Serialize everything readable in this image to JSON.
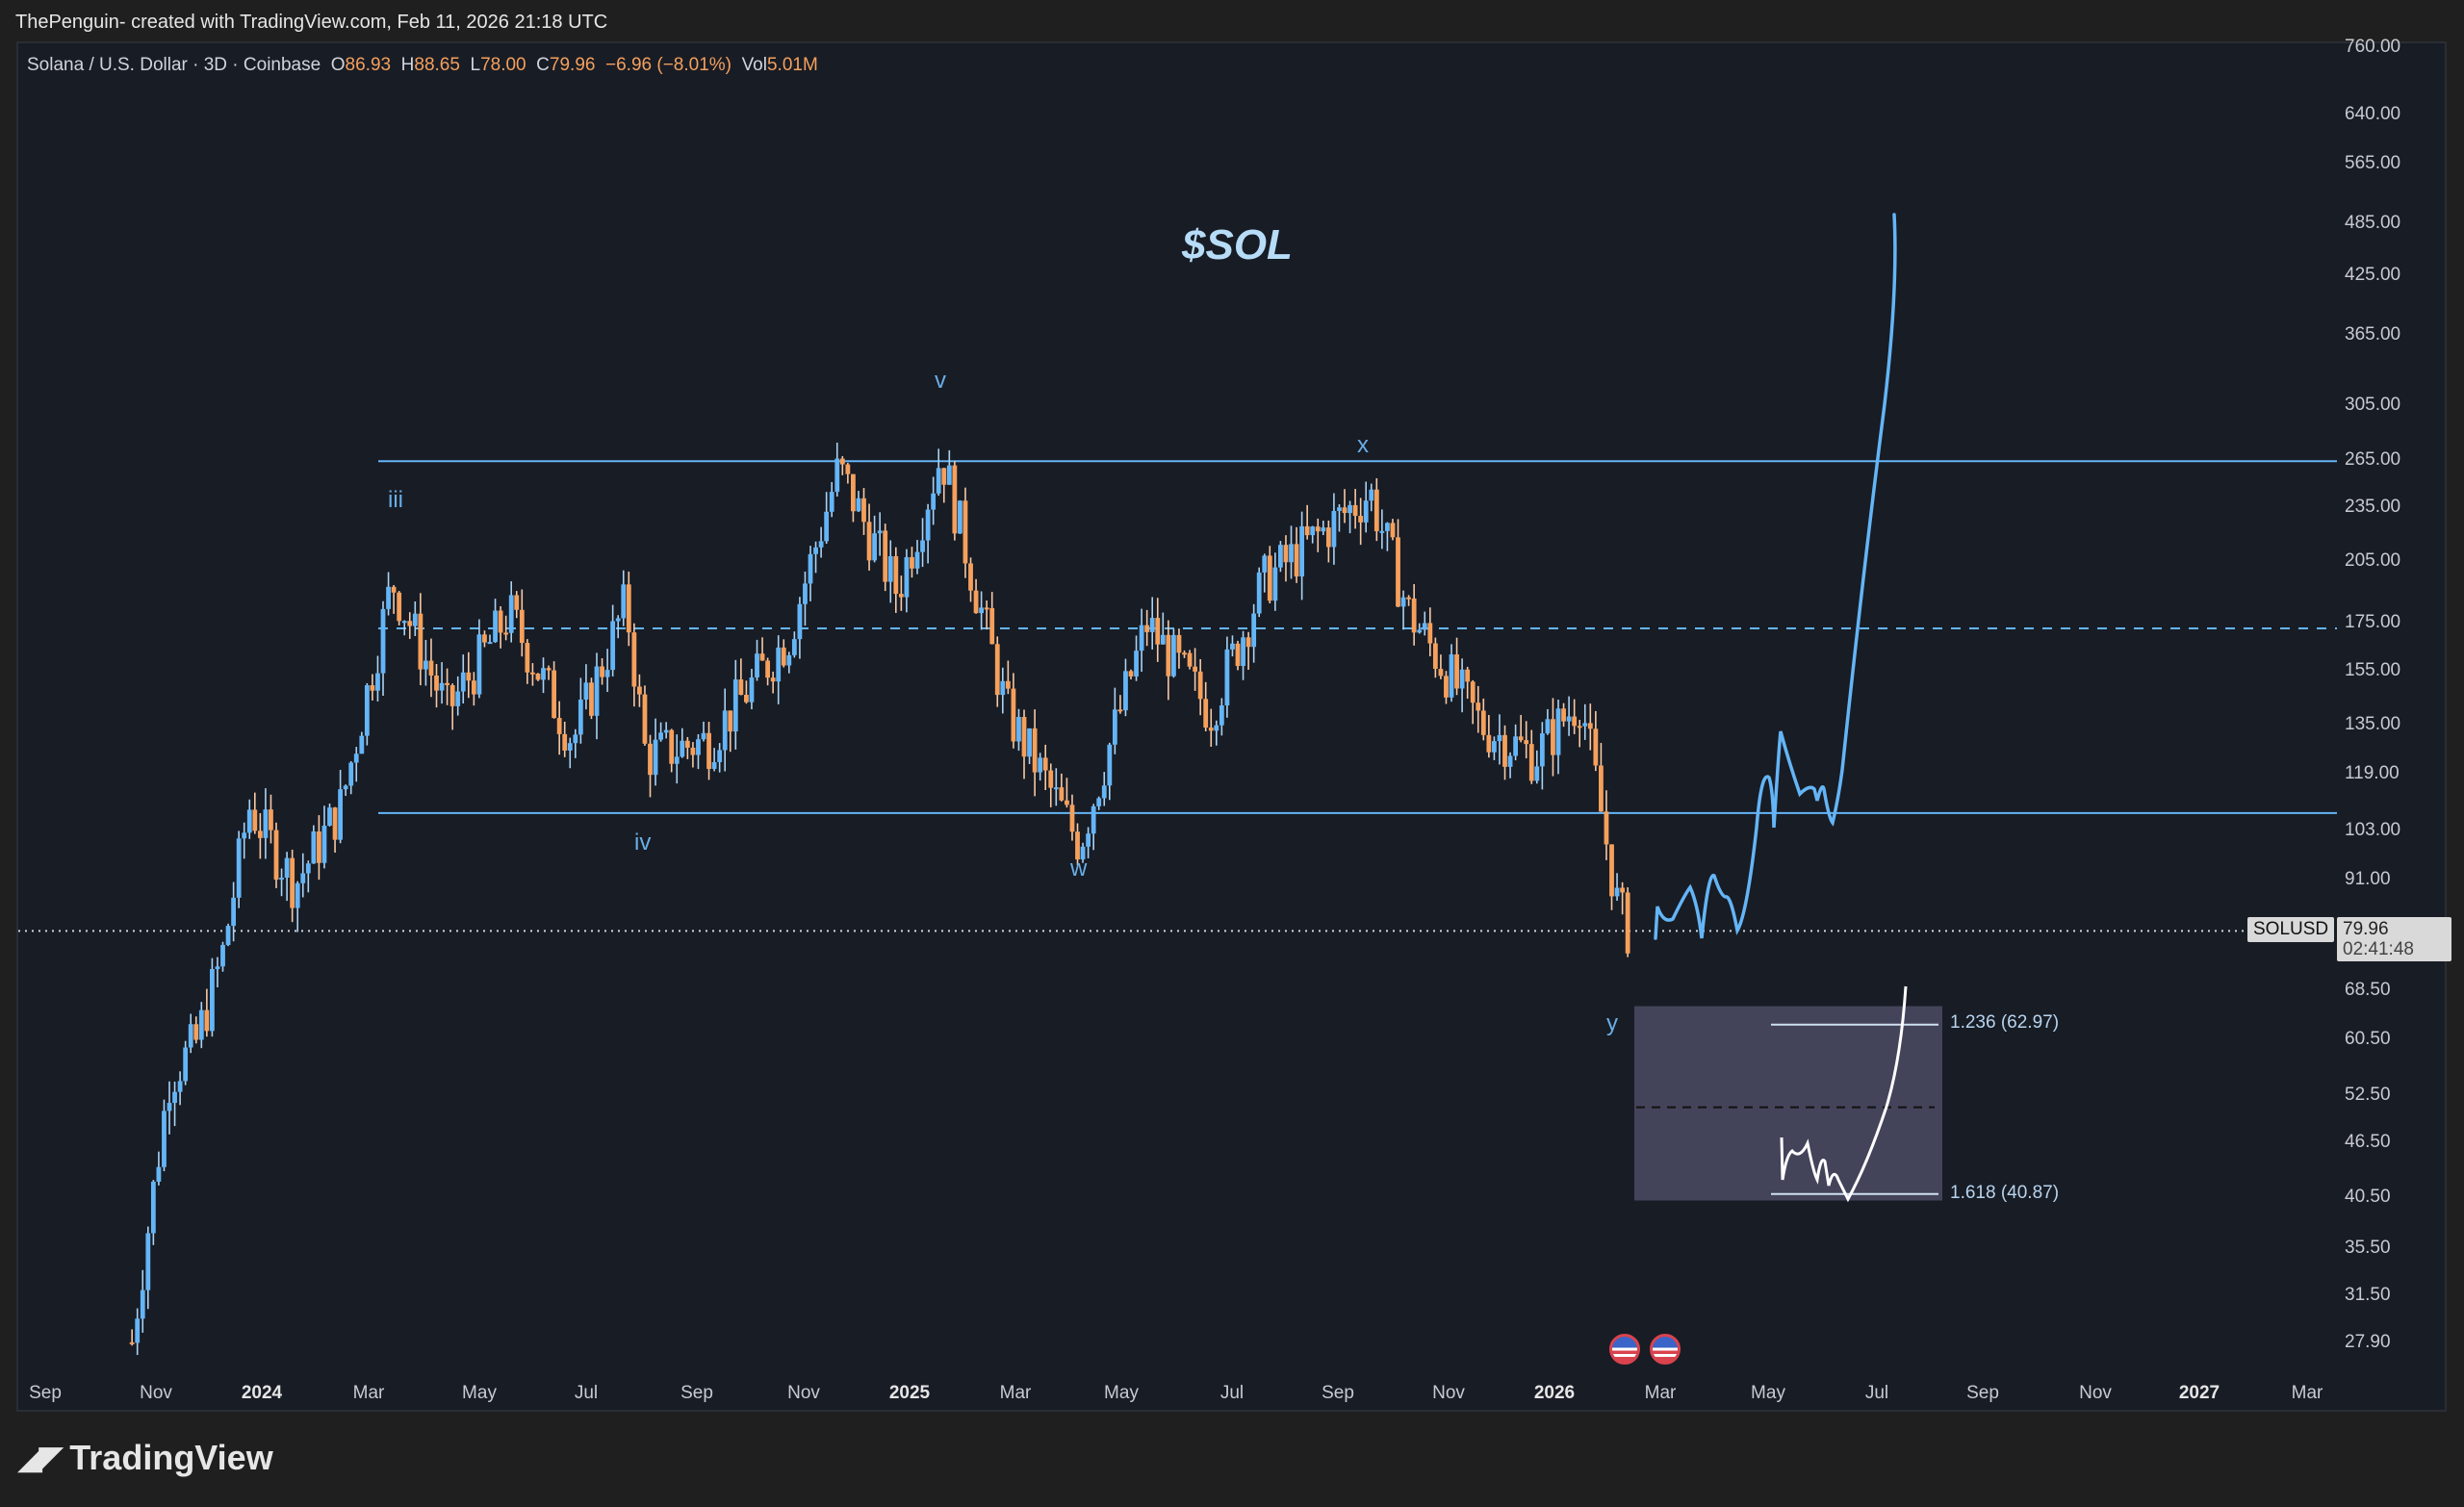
{
  "header": {
    "credit": "ThePenguin- created with TradingView.com, Feb 11, 2026 21:18 UTC"
  },
  "legend": {
    "symbol": "Solana / U.S. Dollar · 3D · Coinbase",
    "open_label": "O",
    "open": "86.93",
    "high_label": "H",
    "high": "88.65",
    "low_label": "L",
    "low": "78.00",
    "close_label": "C",
    "close": "79.96",
    "change": "−6.96 (−8.01%)",
    "vol_label": "Vol",
    "vol": "5.01M"
  },
  "annotations": {
    "title": "$SOL",
    "waves": [
      "iii",
      "iv",
      "v",
      "w",
      "x",
      "y"
    ],
    "fib_1236": "1.236 (62.97)",
    "fib_1618": "1.618 (40.87)"
  },
  "price_badge": {
    "symbol": "SOLUSD",
    "price": "79.96",
    "countdown": "02:41:48"
  },
  "y_axis": [
    "760.00",
    "640.00",
    "565.00",
    "485.00",
    "425.00",
    "365.00",
    "305.00",
    "265.00",
    "235.00",
    "205.00",
    "175.00",
    "155.00",
    "135.00",
    "119.00",
    "103.00",
    "91.00",
    "68.50",
    "60.50",
    "52.50",
    "46.50",
    "40.50",
    "35.50",
    "31.50",
    "27.90"
  ],
  "x_axis": [
    {
      "label": "Sep",
      "bold": false
    },
    {
      "label": "Nov",
      "bold": false
    },
    {
      "label": "2024",
      "bold": true
    },
    {
      "label": "Mar",
      "bold": false
    },
    {
      "label": "May",
      "bold": false
    },
    {
      "label": "Jul",
      "bold": false
    },
    {
      "label": "Sep",
      "bold": false
    },
    {
      "label": "Nov",
      "bold": false
    },
    {
      "label": "2025",
      "bold": true
    },
    {
      "label": "Mar",
      "bold": false
    },
    {
      "label": "May",
      "bold": false
    },
    {
      "label": "Jul",
      "bold": false
    },
    {
      "label": "Sep",
      "bold": false
    },
    {
      "label": "Nov",
      "bold": false
    },
    {
      "label": "2026",
      "bold": true
    },
    {
      "label": "Mar",
      "bold": false
    },
    {
      "label": "May",
      "bold": false
    },
    {
      "label": "Jul",
      "bold": false
    },
    {
      "label": "Sep",
      "bold": false
    },
    {
      "label": "Nov",
      "bold": false
    },
    {
      "label": "2027",
      "bold": true
    },
    {
      "label": "Mar",
      "bold": false
    }
  ],
  "footer": {
    "brand": "TradingView"
  },
  "colors": {
    "up": "#64b5f6",
    "down": "#f5a05c",
    "line": "#64b5f6",
    "background": "#181c25"
  },
  "chart_data": {
    "type": "candlestick",
    "title": "$SOL",
    "subtitle": "Solana / U.S. Dollar · 3D · Coinbase",
    "scale": "log",
    "ylim": [
      27.9,
      760
    ],
    "x_range": [
      "2023-09",
      "2027-03"
    ],
    "last": {
      "open": 86.93,
      "high": 88.65,
      "low": 78.0,
      "close": 79.96,
      "change": -6.96,
      "change_pct": -8.01,
      "volume": "5.01M"
    },
    "approx_closes": [
      {
        "date": "2023-10-20",
        "close": 28
      },
      {
        "date": "2023-11-10",
        "close": 55
      },
      {
        "date": "2023-11-25",
        "close": 60
      },
      {
        "date": "2023-12-10",
        "close": 75
      },
      {
        "date": "2023-12-25",
        "close": 110
      },
      {
        "date": "2024-01-20",
        "close": 90
      },
      {
        "date": "2024-02-15",
        "close": 110
      },
      {
        "date": "2024-03-15",
        "close": 195
      },
      {
        "date": "2024-04-15",
        "close": 140
      },
      {
        "date": "2024-05-20",
        "close": 180
      },
      {
        "date": "2024-06-25",
        "close": 130
      },
      {
        "date": "2024-07-25",
        "close": 185
      },
      {
        "date": "2024-08-05",
        "close": 125
      },
      {
        "date": "2024-09-10",
        "close": 130
      },
      {
        "date": "2024-10-25",
        "close": 170
      },
      {
        "date": "2024-11-22",
        "close": 260
      },
      {
        "date": "2024-12-25",
        "close": 190
      },
      {
        "date": "2025-01-19",
        "close": 270
      },
      {
        "date": "2025-02-25",
        "close": 140
      },
      {
        "date": "2025-04-07",
        "close": 100
      },
      {
        "date": "2025-05-15",
        "close": 175
      },
      {
        "date": "2025-06-20",
        "close": 140
      },
      {
        "date": "2025-07-20",
        "close": 195
      },
      {
        "date": "2025-09-18",
        "close": 245
      },
      {
        "date": "2025-10-10",
        "close": 180
      },
      {
        "date": "2025-11-20",
        "close": 135
      },
      {
        "date": "2025-12-20",
        "close": 125
      },
      {
        "date": "2026-01-15",
        "close": 145
      },
      {
        "date": "2026-02-05",
        "close": 85
      },
      {
        "date": "2026-02-11",
        "close": 79.96
      }
    ],
    "levels": [
      {
        "name": "range-top",
        "price": 265,
        "style": "solid"
      },
      {
        "name": "range-mid",
        "price": 173,
        "style": "dashed"
      },
      {
        "name": "range-bottom",
        "price": 108,
        "style": "solid"
      },
      {
        "name": "current-price",
        "price": 79.96,
        "style": "dotted"
      }
    ],
    "wave_labels": [
      {
        "label": "iii",
        "date": "2024-03-15",
        "price": 235
      },
      {
        "label": "iv",
        "date": "2024-08-05",
        "price": 96
      },
      {
        "label": "v",
        "date": "2025-01-19",
        "price": 310
      },
      {
        "label": "w",
        "date": "2025-04-07",
        "price": 93
      },
      {
        "label": "x",
        "date": "2025-09-18",
        "price": 270
      },
      {
        "label": "y",
        "date": "2026-02-05",
        "price": 61
      }
    ],
    "fib_zone": {
      "from": 40.87,
      "to": 66,
      "levels": [
        {
          "ratio": 1.236,
          "price": 62.97
        },
        {
          "ratio": 1.618,
          "price": 40.87
        }
      ]
    },
    "projection": {
      "path_prices": [
        80,
        88,
        82,
        90,
        80,
        110,
        130,
        112,
        108,
        115,
        485
      ],
      "end": "2026-07",
      "target": 485
    }
  }
}
